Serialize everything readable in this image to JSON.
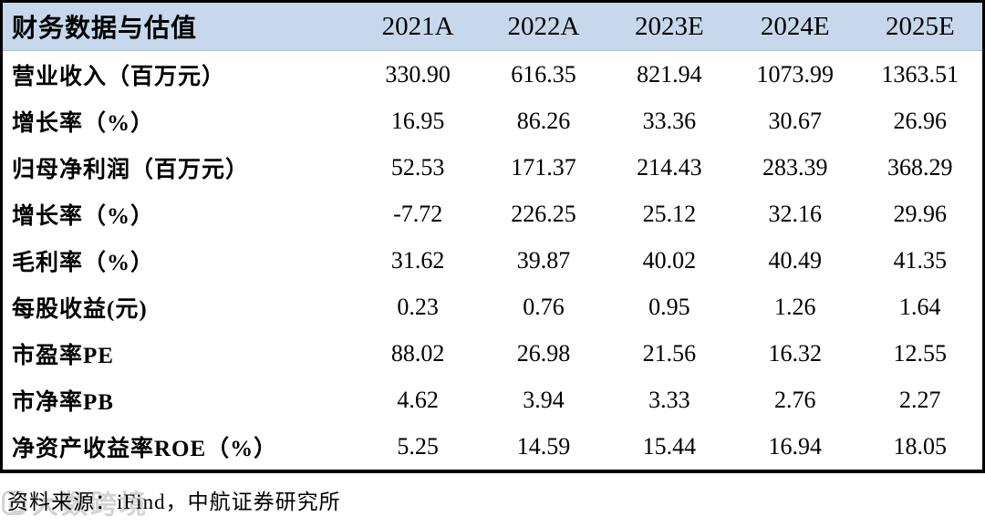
{
  "table": {
    "title": "财务数据与估值",
    "columns": [
      "2021A",
      "2022A",
      "2023E",
      "2024E",
      "2025E"
    ],
    "rows": [
      {
        "label": "营业收入（百万元）",
        "values": [
          "330.90",
          "616.35",
          "821.94",
          "1073.99",
          "1363.51"
        ]
      },
      {
        "label": "增长率（%）",
        "values": [
          "16.95",
          "86.26",
          "33.36",
          "30.67",
          "26.96"
        ]
      },
      {
        "label": "归母净利润（百万元）",
        "values": [
          "52.53",
          "171.37",
          "214.43",
          "283.39",
          "368.29"
        ]
      },
      {
        "label": "增长率（%）",
        "values": [
          "-7.72",
          "226.25",
          "25.12",
          "32.16",
          "29.96"
        ]
      },
      {
        "label": "毛利率（%）",
        "values": [
          "31.62",
          "39.87",
          "40.02",
          "40.49",
          "41.35"
        ]
      },
      {
        "label": "每股收益(元)",
        "values": [
          "0.23",
          "0.76",
          "0.95",
          "1.26",
          "1.64"
        ]
      },
      {
        "label": "市盈率PE",
        "values": [
          "88.02",
          "26.98",
          "21.56",
          "16.32",
          "12.55"
        ]
      },
      {
        "label": "市净率PB",
        "values": [
          "4.62",
          "3.94",
          "3.33",
          "2.76",
          "2.27"
        ]
      },
      {
        "label": "净资产收益率ROE（%）",
        "values": [
          "5.25",
          "14.59",
          "15.44",
          "16.94",
          "18.05"
        ]
      }
    ]
  },
  "footer": {
    "source": "资料来源：iFind，中航证券研究所"
  },
  "watermark": {
    "text": "大数跨境"
  },
  "colors": {
    "header_bg": "#c7d8ed",
    "border": "#000000",
    "text": "#000000",
    "watermark": "#cfcfcf"
  },
  "chart_data": {
    "type": "table",
    "title": "财务数据与估值",
    "categories": [
      "2021A",
      "2022A",
      "2023E",
      "2024E",
      "2025E"
    ],
    "series": [
      {
        "name": "营业收入（百万元）",
        "values": [
          330.9,
          616.35,
          821.94,
          1073.99,
          1363.51
        ]
      },
      {
        "name": "增长率（%）",
        "values": [
          16.95,
          86.26,
          33.36,
          30.67,
          26.96
        ]
      },
      {
        "name": "归母净利润（百万元）",
        "values": [
          52.53,
          171.37,
          214.43,
          283.39,
          368.29
        ]
      },
      {
        "name": "增长率（%）",
        "values": [
          -7.72,
          226.25,
          25.12,
          32.16,
          29.96
        ]
      },
      {
        "name": "毛利率（%）",
        "values": [
          31.62,
          39.87,
          40.02,
          40.49,
          41.35
        ]
      },
      {
        "name": "每股收益(元)",
        "values": [
          0.23,
          0.76,
          0.95,
          1.26,
          1.64
        ]
      },
      {
        "name": "市盈率PE",
        "values": [
          88.02,
          26.98,
          21.56,
          16.32,
          12.55
        ]
      },
      {
        "name": "市净率PB",
        "values": [
          4.62,
          3.94,
          3.33,
          2.76,
          2.27
        ]
      },
      {
        "name": "净资产收益率ROE（%）",
        "values": [
          5.25,
          14.59,
          15.44,
          16.94,
          18.05
        ]
      }
    ],
    "source_note": "资料来源：iFind，中航证券研究所"
  }
}
